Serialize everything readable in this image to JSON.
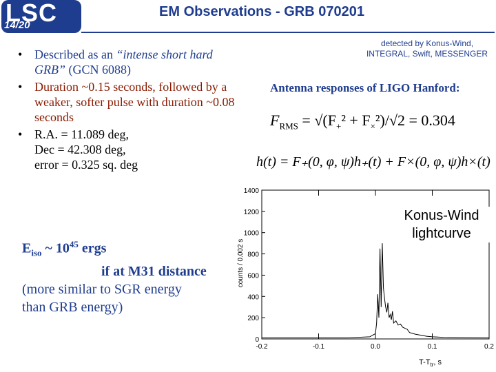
{
  "header": {
    "logo_text": "LSC",
    "slide_number": "14/20",
    "title": "EM Observations - GRB 070201"
  },
  "bullets": [
    {
      "plain": "Described as an ",
      "italic": "“intense short hard GRB”",
      "rest": " (GCN 6088)"
    },
    {
      "text": "Duration ~0.15 seconds, followed by a weaker, softer pulse with duration ~0.08 seconds"
    },
    {
      "lines": [
        "R.A. = 11.089 deg,",
        "Dec = 42.308 deg,",
        "error = 0.325 sq. deg"
      ]
    }
  ],
  "energy": {
    "e_main": "E",
    "e_sub": "iso",
    "tilde": " ~ 10",
    "exp": "45",
    "ergs": " ergs",
    "line2": "if at M31 distance",
    "line3": "(more similar to SGR energy",
    "line4": "than GRB energy)"
  },
  "detected": {
    "line1": "detected by Konus-Wind,",
    "line2": "INTEGRAL, Swift, MESSENGER"
  },
  "antenna_heading": "Antenna responses of LIGO Hanford:",
  "formula1": {
    "lhs": "F",
    "sub": "RMS",
    "eq": " = √(F",
    "plus": "² + F",
    "tail": "²)/√2 = 0.304"
  },
  "formula2": "h(t) = F₊(0, φ, ψ)h₊(t) + F×(0, φ, ψ)h×(t)",
  "chart_data": {
    "type": "line",
    "title": "Konus-Wind lightcurve",
    "xlabel": "T-T",
    "xlabel_sub": "tr",
    "xlabel_unit": ", s",
    "ylabel": "counts / 0.002 s",
    "xlim": [
      -0.2,
      0.2
    ],
    "ylim": [
      0,
      1400
    ],
    "xticks": [
      "-0.2",
      "-0.1",
      "0.0",
      "0.1",
      "0.2"
    ],
    "yticks": [
      "0",
      "200",
      "400",
      "600",
      "800",
      "1000",
      "1200",
      "1400"
    ],
    "series": [
      {
        "x": [
          -0.2,
          -0.15,
          -0.1,
          -0.05,
          -0.01,
          0.0,
          0.002,
          0.004,
          0.006,
          0.008,
          0.01,
          0.012,
          0.014,
          0.016,
          0.018,
          0.02,
          0.022,
          0.024,
          0.026,
          0.028,
          0.03,
          0.032,
          0.036,
          0.04,
          0.044,
          0.048,
          0.052,
          0.056,
          0.06,
          0.07,
          0.08,
          0.09,
          0.1,
          0.12,
          0.15,
          0.2
        ],
        "y": [
          10,
          10,
          10,
          10,
          20,
          50,
          150,
          420,
          200,
          850,
          300,
          900,
          480,
          380,
          300,
          250,
          340,
          200,
          230,
          180,
          260,
          150,
          170,
          130,
          140,
          110,
          100,
          90,
          60,
          45,
          35,
          25,
          20,
          15,
          12,
          10
        ]
      }
    ]
  }
}
